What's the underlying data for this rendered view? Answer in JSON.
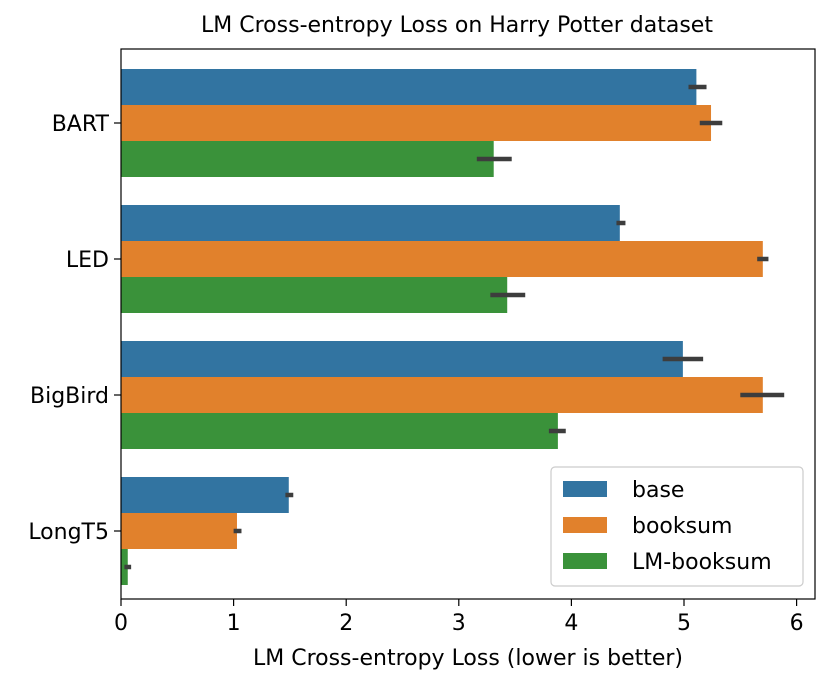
{
  "chart_data": {
    "type": "bar",
    "orientation": "horizontal",
    "title": "LM Cross-entropy Loss on Harry Potter dataset",
    "xlabel": "LM Cross-entropy Loss (lower is better)",
    "ylabel": "",
    "xlim": [
      0,
      6.17
    ],
    "xticks": [
      "0",
      "1",
      "2",
      "3",
      "4",
      "5",
      "6"
    ],
    "categories": [
      "BART",
      "LED",
      "BigBird",
      "LongT5"
    ],
    "legend_position": "bottom-right",
    "grid": false,
    "series": [
      {
        "name": "base",
        "color": "#3274a1",
        "values": [
          5.11,
          4.43,
          4.99,
          1.49
        ],
        "err_low": [
          5.04,
          4.4,
          4.81,
          1.46
        ],
        "err_high": [
          5.2,
          4.48,
          5.17,
          1.53
        ]
      },
      {
        "name": "booksum",
        "color": "#e1812c",
        "values": [
          5.24,
          5.7,
          5.7,
          1.03
        ],
        "err_low": [
          5.14,
          5.65,
          5.5,
          1.0
        ],
        "err_high": [
          5.34,
          5.75,
          5.89,
          1.07
        ]
      },
      {
        "name": "LM-booksum",
        "color": "#3a923a",
        "values": [
          3.31,
          3.43,
          3.88,
          0.06
        ],
        "err_low": [
          3.16,
          3.28,
          3.8,
          0.03
        ],
        "err_high": [
          3.47,
          3.59,
          3.95,
          0.09
        ]
      }
    ]
  }
}
